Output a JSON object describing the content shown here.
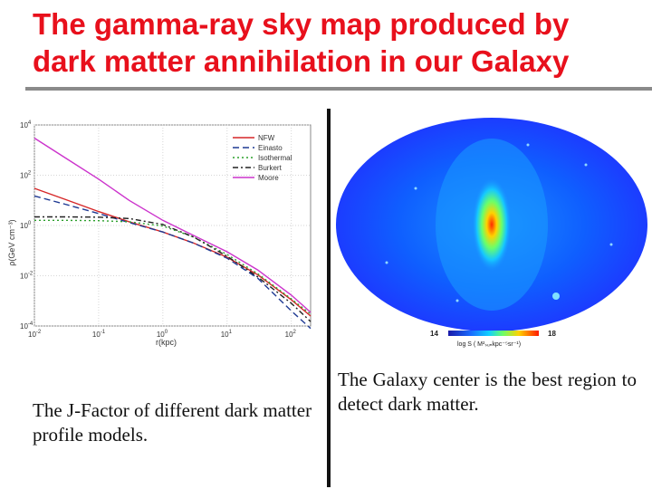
{
  "slide": {
    "title_line1": "The gamma-ray sky map produced by",
    "title_line2": "dark matter annihilation in our Galaxy",
    "caption_left": "The J-Factor of different dark matter profile models.",
    "caption_right": "The Galaxy center is the best region to detect dark matter.",
    "accent_color": "#e8101c"
  },
  "chart_data": {
    "type": "line",
    "title": "",
    "xlabel": "r(kpc)",
    "ylabel": "ρ(GeV cm⁻³)",
    "xscale": "log",
    "yscale": "log",
    "xlim": [
      0.01,
      200
    ],
    "ylim": [
      0.0001,
      10000
    ],
    "x_ticks": [
      {
        "label": "10",
        "exp": "-2"
      },
      {
        "label": "10",
        "exp": "-1"
      },
      {
        "label": "10",
        "exp": "0"
      },
      {
        "label": "10",
        "exp": "1"
      },
      {
        "label": "10",
        "exp": "2"
      }
    ],
    "y_ticks": [
      {
        "label": "10",
        "exp": "4"
      },
      {
        "label": "10",
        "exp": "2"
      },
      {
        "label": "10",
        "exp": "0"
      },
      {
        "label": "10",
        "exp": "-2"
      },
      {
        "label": "10",
        "exp": "-4"
      }
    ],
    "legend_position": "top-right",
    "series": [
      {
        "name": "NFW",
        "color": "#d62728",
        "dash": "",
        "x": [
          0.01,
          0.03,
          0.1,
          0.3,
          1,
          3,
          10,
          30,
          100,
          200
        ],
        "y": [
          30,
          11,
          3.6,
          1.4,
          0.55,
          0.2,
          0.055,
          0.011,
          0.0011,
          0.00025
        ]
      },
      {
        "name": "Einasto",
        "color": "#1f3a93",
        "dash": "7,4",
        "x": [
          0.01,
          0.03,
          0.1,
          0.3,
          1,
          3,
          10,
          30,
          100,
          200
        ],
        "y": [
          15,
          7,
          3,
          1.3,
          0.55,
          0.2,
          0.05,
          0.008,
          0.0004,
          8e-05
        ]
      },
      {
        "name": "Isothermal",
        "color": "#2ca02c",
        "dash": "2,3",
        "x": [
          0.01,
          0.03,
          0.1,
          0.3,
          1,
          3,
          10,
          30,
          100,
          200
        ],
        "y": [
          1.6,
          1.6,
          1.55,
          1.4,
          0.95,
          0.35,
          0.07,
          0.012,
          0.0012,
          0.0003
        ]
      },
      {
        "name": "Burkert",
        "color": "#222222",
        "dash": "6,3,2,3",
        "x": [
          0.01,
          0.03,
          0.1,
          0.3,
          1,
          3,
          10,
          30,
          100,
          200
        ],
        "y": [
          2.2,
          2.2,
          2.15,
          1.9,
          1.1,
          0.35,
          0.06,
          0.009,
          0.0008,
          0.00015
        ]
      },
      {
        "name": "Moore",
        "color": "#cc33cc",
        "dash": "",
        "x": [
          0.01,
          0.03,
          0.1,
          0.3,
          1,
          3,
          10,
          30,
          100,
          200
        ],
        "y": [
          3000,
          500,
          70,
          10,
          1.6,
          0.4,
          0.09,
          0.017,
          0.0017,
          0.00035
        ]
      }
    ]
  },
  "skymap": {
    "colorbar_min": "14",
    "colorbar_max": "18",
    "colorbar_label": "log S  ( M²ₛᵤₙkpc⁻⁵sr⁻¹)"
  }
}
